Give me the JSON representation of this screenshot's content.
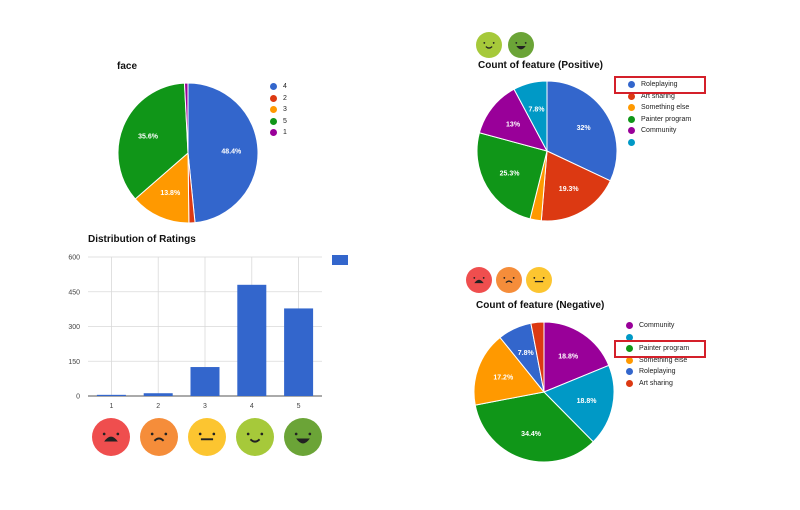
{
  "chart_data": [
    {
      "type": "pie",
      "title": "face",
      "legend": "right",
      "slices": [
        {
          "label": "4",
          "value": 48.4,
          "display": "48.4%",
          "color": "#3366cc"
        },
        {
          "label": "2",
          "value": 1.4,
          "display": "",
          "color": "#dc3912"
        },
        {
          "label": "3",
          "value": 13.8,
          "display": "13.8%",
          "color": "#ff9900"
        },
        {
          "label": "5",
          "value": 35.6,
          "display": "35.6%",
          "color": "#109618"
        },
        {
          "label": "1",
          "value": 0.8,
          "display": "",
          "color": "#990099"
        }
      ]
    },
    {
      "type": "pie",
      "title": "Count of feature (Positive)",
      "legend": "right",
      "slices": [
        {
          "label": "Roleplaying",
          "value": 32,
          "display": "32%",
          "color": "#3366cc"
        },
        {
          "label": "Art sharing",
          "value": 19.3,
          "display": "19.3%",
          "color": "#dc3912"
        },
        {
          "label": "Something else",
          "value": 2.6,
          "display": "",
          "color": "#ff9900"
        },
        {
          "label": "Painter program",
          "value": 25.3,
          "display": "25.3%",
          "color": "#109618"
        },
        {
          "label": "Community",
          "value": 13,
          "display": "13%",
          "color": "#990099"
        },
        {
          "label": "",
          "value": 7.8,
          "display": "7.8%",
          "color": "#0099c6"
        }
      ],
      "highlighted": "Roleplaying"
    },
    {
      "type": "bar",
      "title": "Distribution of Ratings",
      "categories": [
        "1",
        "2",
        "3",
        "4",
        "5"
      ],
      "values": [
        5,
        12,
        125,
        480,
        378
      ],
      "yticks": [
        0,
        150,
        300,
        450,
        600
      ],
      "ylim": [
        0,
        600
      ],
      "color": "#3366cc"
    },
    {
      "type": "pie",
      "title": "Count of feature (Negative)",
      "legend": "right",
      "slices": [
        {
          "label": "Community",
          "value": 18.8,
          "display": "18.8%",
          "color": "#990099"
        },
        {
          "label": "",
          "value": 18.8,
          "display": "18.8%",
          "color": "#0099c6"
        },
        {
          "label": "Painter program",
          "value": 34.4,
          "display": "34.4%",
          "color": "#109618"
        },
        {
          "label": "Something else",
          "value": 17.2,
          "display": "17.2%",
          "color": "#ff9900"
        },
        {
          "label": "Roleplaying",
          "value": 7.8,
          "display": "7.8%",
          "color": "#3366cc"
        },
        {
          "label": "Art sharing",
          "value": 3,
          "display": "",
          "color": "#dc3912"
        }
      ],
      "highlighted": "Painter program"
    }
  ],
  "faces": {
    "positive": [
      {
        "name": "face-smile-icon",
        "color": "#a6c93a"
      },
      {
        "name": "face-grin-icon",
        "color": "#6ba437"
      }
    ],
    "negative": [
      {
        "name": "face-very-sad-icon",
        "color": "#ef4e4e"
      },
      {
        "name": "face-sad-icon",
        "color": "#f58d3a"
      },
      {
        "name": "face-neutral-icon",
        "color": "#fcc530"
      }
    ],
    "rating_scale": [
      {
        "name": "face-very-sad-icon",
        "color": "#ef4e4e"
      },
      {
        "name": "face-sad-icon",
        "color": "#f58d3a"
      },
      {
        "name": "face-neutral-icon",
        "color": "#fcc530"
      },
      {
        "name": "face-smile-icon",
        "color": "#a6c93a"
      },
      {
        "name": "face-grin-icon",
        "color": "#6ba437"
      }
    ]
  }
}
